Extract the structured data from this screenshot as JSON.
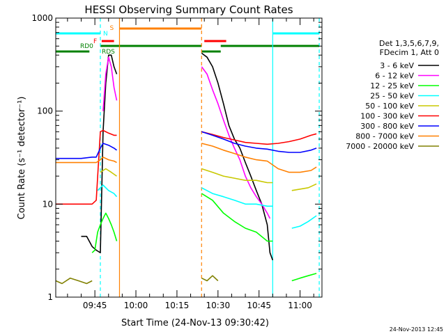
{
  "chart_data": {
    "type": "line",
    "title": "HESSI Observing Summary Count Rates",
    "xlabel": "Start Time (24-Nov-13 09:30:42)",
    "ylabel": "Count Rate (s⁻¹ detector⁻¹)",
    "ylim": [
      1,
      1000
    ],
    "y_scale": "log",
    "xlim": [
      "09:30:42",
      "11:08:00"
    ],
    "x_ticks": [
      "09:45",
      "10:00",
      "10:15",
      "10:30",
      "10:45",
      "11:00"
    ],
    "y_ticks": [
      "1",
      "10",
      "100",
      "1000"
    ],
    "legend_title": [
      "Det 1,3,5,6,7,9,",
      "FDecim 1, Att 0"
    ],
    "legend_position": "right",
    "timestamp": "24-Nov-2013 12:45",
    "flags": {
      "labels": {
        "N": "N",
        "S": "S",
        "F": "F",
        "RD0": "RD0",
        "RDS": "RDS"
      },
      "colors": {
        "N": "#00ffff",
        "S": "#ff8000",
        "F": "#ff0000",
        "RD": "#008000"
      },
      "N": [
        [
          "09:30:42",
          "09:47:00"
        ],
        [
          "10:50:00",
          "11:07:00"
        ]
      ],
      "S": [
        [
          "09:54:00",
          "10:24:00"
        ]
      ],
      "F": [
        [
          "09:47:30",
          "09:52:00"
        ],
        [
          "10:25:00",
          "10:33:00"
        ]
      ],
      "RD0": [
        [
          "09:30:42",
          "09:43:00"
        ],
        [
          "10:24:00",
          "10:31:00"
        ]
      ],
      "RDS": [
        [
          "09:47:00",
          "10:24:00"
        ],
        [
          "10:31:00",
          "11:07:00"
        ]
      ]
    },
    "vertical_lines": [
      {
        "time": "09:47:00",
        "color": "#00ffff",
        "style": "dashed"
      },
      {
        "time": "09:54:00",
        "color": "#ff8000",
        "style": "solid"
      },
      {
        "time": "10:24:00",
        "color": "#ff8000",
        "style": "dashed"
      },
      {
        "time": "10:50:00",
        "color": "#00ffff",
        "style": "solid"
      },
      {
        "time": "11:07:00",
        "color": "#00ffff",
        "style": "dashed"
      }
    ],
    "series": [
      {
        "name": "3 - 6 keV",
        "color": "#000000",
        "segments": [
          {
            "t": [
              "09:40:00",
              "09:42:00",
              "09:44:00",
              "09:45:30",
              "09:47:00",
              "09:48:00",
              "09:49:00",
              "09:50:00",
              "09:51:00",
              "09:52:00",
              "09:53:00"
            ],
            "v": [
              4.5,
              4.5,
              3.5,
              3.2,
              3.0,
              60,
              200,
              400,
              400,
              300,
              250
            ]
          },
          {
            "t": [
              "10:24:00",
              "10:26:00",
              "10:28:00",
              "10:30:00",
              "10:32:00",
              "10:34:00",
              "10:36:00",
              "10:38:00",
              "10:40:00",
              "10:42:00",
              "10:44:00",
              "10:46:00",
              "10:48:00",
              "10:49:00",
              "10:50:00"
            ],
            "v": [
              420,
              380,
              300,
              200,
              120,
              70,
              50,
              40,
              28,
              20,
              14,
              10,
              6,
              3,
              2.5
            ]
          }
        ]
      },
      {
        "name": "6 - 12 keV",
        "color": "#ff00ff",
        "segments": [
          {
            "t": [
              "09:48:00",
              "09:49:00",
              "09:50:00",
              "09:51:00",
              "09:52:00",
              "09:53:00"
            ],
            "v": [
              100,
              250,
              380,
              300,
              180,
              130
            ]
          },
          {
            "t": [
              "10:24:00",
              "10:26:00",
              "10:28:00",
              "10:30:00",
              "10:32:00",
              "10:34:00",
              "10:36:00",
              "10:38:00",
              "10:40:00",
              "10:42:00",
              "10:44:00",
              "10:46:00",
              "10:48:00",
              "10:49:00"
            ],
            "v": [
              300,
              250,
              170,
              120,
              80,
              55,
              40,
              30,
              20,
              15,
              12,
              10,
              8,
              7
            ]
          }
        ]
      },
      {
        "name": "12 - 25 keV",
        "color": "#00ff00",
        "segments": [
          {
            "t": [
              "09:44:00",
              "09:45:00",
              "09:46:00",
              "09:47:00",
              "09:48:00",
              "09:49:00",
              "09:50:00",
              "09:51:00",
              "09:52:00",
              "09:53:00"
            ],
            "v": [
              3.0,
              3.2,
              5.0,
              6.0,
              7.0,
              8.0,
              7.0,
              6.0,
              5.0,
              4.0
            ]
          },
          {
            "t": [
              "10:24:00",
              "10:28:00",
              "10:32:00",
              "10:36:00",
              "10:40:00",
              "10:44:00",
              "10:48:00",
              "10:50:00"
            ],
            "v": [
              13,
              11,
              8,
              6.5,
              5.5,
              5,
              4,
              4
            ]
          },
          {
            "t": [
              "10:57:00",
              "11:00:00",
              "11:03:00",
              "11:06:00"
            ],
            "v": [
              1.5,
              1.6,
              1.7,
              1.8
            ]
          }
        ]
      },
      {
        "name": "25 - 50 keV",
        "color": "#00ffff",
        "segments": [
          {
            "t": [
              "09:46:00",
              "09:48:00",
              "09:50:00",
              "09:52:00",
              "09:53:00"
            ],
            "v": [
              14,
              16,
              14,
              13,
              12
            ]
          },
          {
            "t": [
              "10:24:00",
              "10:28:00",
              "10:32:00",
              "10:36:00",
              "10:40:00",
              "10:44:00",
              "10:48:00",
              "10:50:00"
            ],
            "v": [
              15,
              13,
              12,
              11,
              10,
              10,
              9.5,
              9.5
            ]
          },
          {
            "t": [
              "10:57:00",
              "11:00:00",
              "11:03:00",
              "11:06:00"
            ],
            "v": [
              5.5,
              5.8,
              6.5,
              7.5
            ]
          }
        ]
      },
      {
        "name": "50 - 100 keV",
        "color": "#c8c800",
        "segments": [
          {
            "t": [
              "09:47:00",
              "09:49:00",
              "09:51:00",
              "09:53:00"
            ],
            "v": [
              22,
              24,
              22,
              20
            ]
          },
          {
            "t": [
              "10:24:00",
              "10:28:00",
              "10:32:00",
              "10:36:00",
              "10:40:00",
              "10:44:00",
              "10:48:00",
              "10:50:00"
            ],
            "v": [
              24,
              22,
              20,
              19,
              18,
              18,
              17,
              17
            ]
          },
          {
            "t": [
              "10:57:00",
              "11:00:00",
              "11:03:00",
              "11:06:00"
            ],
            "v": [
              14,
              14.5,
              15,
              16.5
            ]
          }
        ]
      },
      {
        "name": "100 - 300 keV",
        "color": "#ff0000",
        "segments": [
          {
            "t": [
              "09:30:42",
              "09:33:00",
              "09:36:00",
              "09:39:00",
              "09:42:00",
              "09:44:00",
              "09:45:30",
              "09:47:00",
              "09:48:00",
              "09:50:00",
              "09:52:00",
              "09:53:00"
            ],
            "v": [
              10,
              10,
              10,
              10,
              10,
              10,
              11,
              60,
              62,
              58,
              55,
              55
            ]
          },
          {
            "t": [
              "10:24:00",
              "10:28:00",
              "10:32:00",
              "10:36:00",
              "10:40:00",
              "10:44:00",
              "10:48:00",
              "10:52:00",
              "10:56:00",
              "11:00:00",
              "11:04:00",
              "11:06:00"
            ],
            "v": [
              60,
              56,
              52,
              49,
              46,
              45,
              44,
              45,
              47,
              50,
              55,
              57
            ]
          }
        ]
      },
      {
        "name": "300 - 800 keV",
        "color": "#0000ff",
        "segments": [
          {
            "t": [
              "09:30:42",
              "09:35:00",
              "09:40:00",
              "09:44:00",
              "09:45:30",
              "09:47:00",
              "09:48:00",
              "09:50:00",
              "09:52:00",
              "09:53:00"
            ],
            "v": [
              31,
              31,
              31,
              32,
              32,
              40,
              45,
              43,
              40,
              38
            ]
          },
          {
            "t": [
              "10:24:00",
              "10:28:00",
              "10:32:00",
              "10:36:00",
              "10:40:00",
              "10:44:00",
              "10:48:00",
              "10:52:00",
              "10:56:00",
              "11:00:00",
              "11:04:00",
              "11:06:00"
            ],
            "v": [
              60,
              55,
              50,
              45,
              42,
              40,
              39,
              37,
              36,
              36,
              38,
              40
            ]
          }
        ]
      },
      {
        "name": "800 - 7000 keV",
        "color": "#ff8000",
        "segments": [
          {
            "t": [
              "09:30:42",
              "09:35:00",
              "09:40:00",
              "09:44:00",
              "09:45:30",
              "09:47:00",
              "09:48:00",
              "09:50:00",
              "09:52:00",
              "09:53:00"
            ],
            "v": [
              28,
              28,
              28,
              28,
              28,
              30,
              32,
              30,
              29,
              28
            ]
          },
          {
            "t": [
              "10:24:00",
              "10:28:00",
              "10:32:00",
              "10:36:00",
              "10:40:00",
              "10:44:00",
              "10:48:00",
              "10:52:00",
              "10:56:00",
              "11:00:00",
              "11:04:00",
              "11:06:00"
            ],
            "v": [
              45,
              42,
              38,
              35,
              32,
              30,
              29,
              24,
              22,
              22,
              23,
              25
            ]
          }
        ]
      },
      {
        "name": "7000 - 20000 keV",
        "color": "#808000",
        "segments": [
          {
            "t": [
              "09:30:42",
              "09:33:00",
              "09:36:00",
              "09:39:00",
              "09:42:00",
              "09:44:00"
            ],
            "v": [
              1.5,
              1.4,
              1.6,
              1.5,
              1.4,
              1.5
            ]
          },
          {
            "t": [
              "10:24:00",
              "10:26:00",
              "10:28:00",
              "10:30:00"
            ],
            "v": [
              1.6,
              1.5,
              1.7,
              1.5
            ]
          }
        ]
      }
    ]
  }
}
